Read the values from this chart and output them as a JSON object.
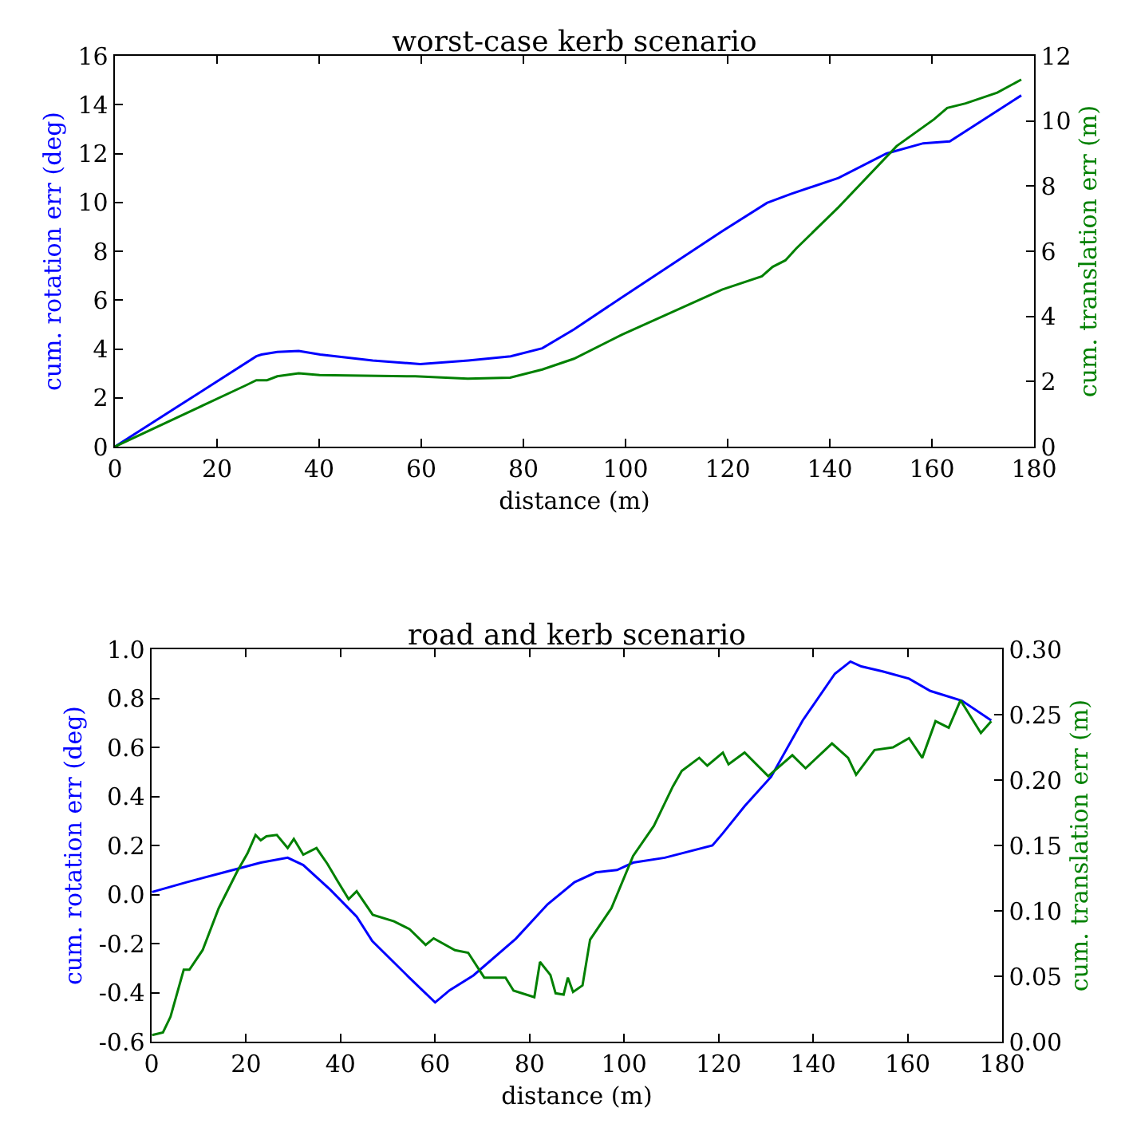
{
  "chart_data": [
    {
      "type": "line",
      "title": "worst-case kerb scenario",
      "xlabel": "distance (m)",
      "ylabel": "cum. rotation err (deg)",
      "y2label": "cum. translation err (m)",
      "xlim": [
        0,
        180
      ],
      "xticks": [
        0,
        20,
        40,
        60,
        80,
        100,
        120,
        140,
        160,
        180
      ],
      "ylim": [
        0,
        16
      ],
      "yticks": [
        0,
        2,
        4,
        6,
        8,
        10,
        12,
        14,
        16
      ],
      "y2lim": [
        0,
        12
      ],
      "y2ticks": [
        0,
        2,
        4,
        6,
        8,
        10,
        12
      ],
      "grid": false,
      "marker": "none",
      "line_style": "solid",
      "series": [
        {
          "color": "#0000ff",
          "x": [
            0,
            27.7,
            28.7,
            31.8,
            36,
            40.2,
            50.5,
            59.8,
            69.2,
            77.5,
            83.7,
            89.9,
            99.2,
            118.9,
            127.7,
            132.4,
            141.7,
            151.1,
            158.3,
            163.5,
            177.5
          ],
          "values": [
            0,
            3.7,
            3.77,
            3.88,
            3.92,
            3.77,
            3.53,
            3.38,
            3.53,
            3.7,
            4.03,
            4.8,
            6.1,
            8.82,
            9.98,
            10.35,
            11.0,
            12.0,
            12.42,
            12.5,
            14.38
          ]
        },
        {
          "color": "#008000",
          "axis": "y2",
          "x": [
            0,
            25.6,
            27.7,
            29.8,
            31.8,
            36,
            40.1,
            58.8,
            69.1,
            77.4,
            83.7,
            89.9,
            99.2,
            118.9,
            126.7,
            128.8,
            131.3,
            133.4,
            141.7,
            153.1,
            160.4,
            163,
            166.6,
            172.8,
            177.5
          ],
          "values": [
            0,
            1.88,
            2.04,
            2.04,
            2.16,
            2.25,
            2.2,
            2.16,
            2.09,
            2.12,
            2.37,
            2.7,
            3.43,
            4.82,
            5.23,
            5.52,
            5.72,
            6.08,
            7.35,
            9.23,
            10.05,
            10.4,
            10.54,
            10.87,
            11.27
          ]
        }
      ]
    },
    {
      "type": "line",
      "title": "road and kerb scenario",
      "xlabel": "distance (m)",
      "ylabel": "cum. rotation err (deg)",
      "y2label": "cum. translation err (m)",
      "xlim": [
        0,
        180
      ],
      "xticks": [
        0,
        20,
        40,
        60,
        80,
        100,
        120,
        140,
        160,
        180
      ],
      "ylim": [
        -0.6,
        1.0
      ],
      "yticks": [
        -0.6,
        -0.4,
        -0.2,
        {
          "value": 0,
          "label": "0.0"
        },
        0.2,
        0.4,
        0.6,
        0.8,
        {
          "value": 1,
          "label": "1.0"
        }
      ],
      "y2lim": [
        0,
        0.3
      ],
      "y2ticks": [
        {
          "value": 0,
          "label": "0.00"
        },
        {
          "value": 0.05,
          "label": "0.05"
        },
        {
          "value": 0.1,
          "label": "0.10"
        },
        {
          "value": 0.15,
          "label": "0.15"
        },
        {
          "value": 0.2,
          "label": "0.20"
        },
        {
          "value": 0.25,
          "label": "0.25"
        },
        {
          "value": 0.3,
          "label": "0.30"
        }
      ],
      "grid": false,
      "marker": "none",
      "line_style": "solid",
      "series": [
        {
          "color": "#0000ff",
          "x": [
            0.1,
            7.4,
            15.3,
            23.1,
            28.8,
            32.1,
            37.8,
            43.4,
            46.7,
            54.6,
            60,
            63.1,
            68.1,
            77.1,
            83.8,
            89.5,
            94,
            98.5,
            101.9,
            108.6,
            118.7,
            120.9,
            125.5,
            131.1,
            137.8,
            144.6,
            147.9,
            150.2,
            154.7,
            160.3,
            164.8,
            171.5,
            177.7
          ],
          "values": [
            0.01,
            0.05,
            0.09,
            0.13,
            0.15,
            0.12,
            0.02,
            -0.09,
            -0.19,
            -0.34,
            -0.44,
            -0.39,
            -0.33,
            -0.18,
            -0.04,
            0.05,
            0.09,
            0.1,
            0.13,
            0.15,
            0.2,
            0.25,
            0.36,
            0.48,
            0.71,
            0.9,
            0.95,
            0.93,
            0.91,
            0.88,
            0.83,
            0.79,
            0.71
          ]
        },
        {
          "color": "#008000",
          "axis": "y2",
          "x": [
            0.1,
            2.4,
            4,
            6.8,
            8,
            10.8,
            14.2,
            18.1,
            20.3,
            22,
            23.1,
            24.3,
            26.5,
            28.8,
            30.1,
            32.1,
            34.9,
            37.2,
            39.5,
            41.7,
            43.4,
            46.8,
            51.3,
            54.6,
            58,
            59.7,
            64.2,
            67,
            70.4,
            74.9,
            76.6,
            81,
            82.2,
            84.4,
            85.5,
            87.2,
            88.1,
            89.2,
            91.2,
            92.8,
            97.3,
            101.9,
            106.3,
            110.3,
            112.2,
            115.9,
            117.6,
            120.9,
            122.1,
            125.5,
            130.5,
            135.6,
            138.4,
            144,
            147.4,
            149.1,
            153,
            156.9,
            160.3,
            163.1,
            165.9,
            168.7,
            171.2,
            175.5,
            177.7
          ],
          "values": [
            0.005,
            0.007,
            0.019,
            0.055,
            0.055,
            0.07,
            0.102,
            0.13,
            0.144,
            0.158,
            0.154,
            0.157,
            0.158,
            0.148,
            0.155,
            0.143,
            0.148,
            0.136,
            0.122,
            0.109,
            0.115,
            0.097,
            0.092,
            0.086,
            0.074,
            0.079,
            0.07,
            0.068,
            0.049,
            0.049,
            0.039,
            0.034,
            0.061,
            0.051,
            0.037,
            0.036,
            0.049,
            0.038,
            0.043,
            0.078,
            0.102,
            0.142,
            0.165,
            0.195,
            0.207,
            0.217,
            0.211,
            0.221,
            0.212,
            0.221,
            0.203,
            0.219,
            0.209,
            0.228,
            0.217,
            0.204,
            0.223,
            0.225,
            0.232,
            0.217,
            0.245,
            0.24,
            0.261,
            0.236,
            0.245
          ]
        }
      ]
    }
  ]
}
